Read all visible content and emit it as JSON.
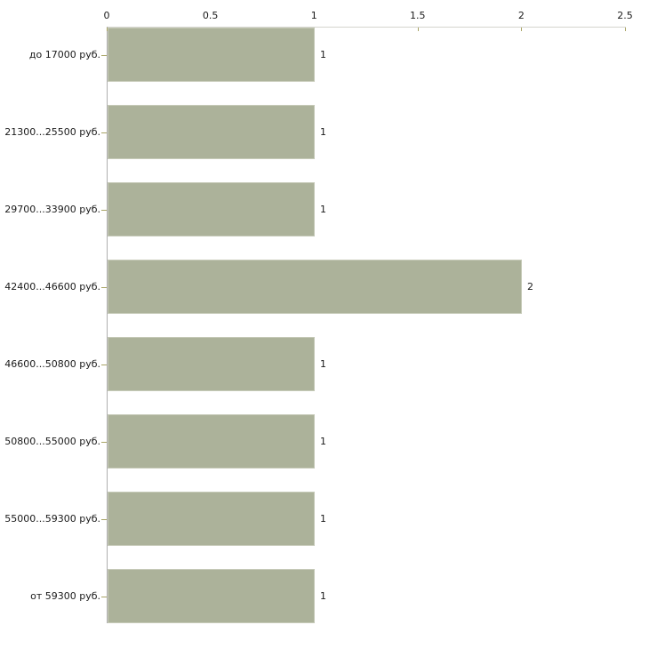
{
  "chart_data": {
    "type": "bar",
    "orientation": "horizontal",
    "title": "",
    "xlabel": "",
    "ylabel": "",
    "categories": [
      "до 17000 руб.",
      "21300...25500 руб.",
      "29700...33900 руб.",
      "42400...46600 руб.",
      "46600...50800 руб.",
      "50800...55000 руб.",
      "55000...59300 руб.",
      "от 59300 руб."
    ],
    "values": [
      1,
      1,
      1,
      2,
      1,
      1,
      1,
      1
    ],
    "value_labels": [
      "1",
      "1",
      "1",
      "2",
      "1",
      "1",
      "1",
      "1"
    ],
    "x_ticks": [
      "0",
      "0.5",
      "1",
      "1.5",
      "2",
      "2.5"
    ],
    "xlim": [
      0,
      2.5
    ],
    "grid": false,
    "legend": false,
    "axis_position": "top",
    "colors": {
      "bar_fill": "#acb29a",
      "bar_border": "#c6cab8",
      "h_axis_line": "#d4d4ce",
      "v_axis_line": "#afafaf",
      "tick_mark": "#a8a465",
      "text": "#1a1a1a",
      "background": "#ffffff"
    }
  }
}
